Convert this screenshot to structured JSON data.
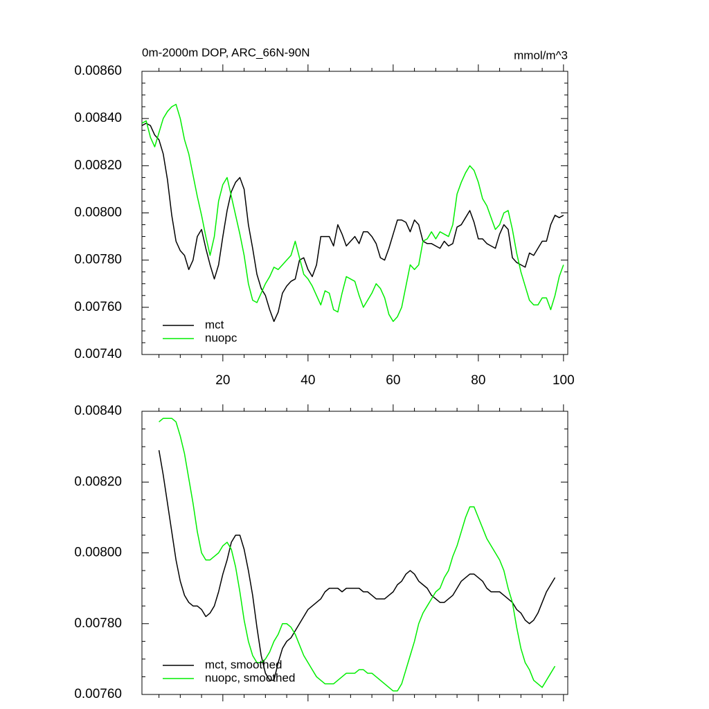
{
  "chart_data": [
    {
      "type": "line",
      "title": "0m-2000m DOP, ARC_66N-90N",
      "units": "mmol/m^3",
      "x": [
        1,
        2,
        3,
        4,
        5,
        6,
        7,
        8,
        9,
        10,
        11,
        12,
        13,
        14,
        15,
        16,
        17,
        18,
        19,
        20,
        21,
        22,
        23,
        24,
        25,
        26,
        27,
        28,
        29,
        30,
        31,
        32,
        33,
        34,
        35,
        36,
        37,
        38,
        39,
        40,
        41,
        42,
        43,
        44,
        45,
        46,
        47,
        48,
        49,
        50,
        51,
        52,
        53,
        54,
        55,
        56,
        57,
        58,
        59,
        60,
        61,
        62,
        63,
        64,
        65,
        66,
        67,
        68,
        69,
        70,
        71,
        72,
        73,
        74,
        75,
        76,
        77,
        78,
        79,
        80,
        81,
        82,
        83,
        84,
        85,
        86,
        87,
        88,
        89,
        90,
        91,
        92,
        93,
        94,
        95,
        96,
        97,
        98,
        99,
        100
      ],
      "series": [
        {
          "name": "mct",
          "color": "#000000",
          "values": [
            0.00837,
            0.00838,
            0.00837,
            0.00833,
            0.00831,
            0.00825,
            0.00814,
            0.00799,
            0.00788,
            0.00784,
            0.00782,
            0.00776,
            0.0078,
            0.0079,
            0.00793,
            0.00785,
            0.00778,
            0.00772,
            0.00778,
            0.0079,
            0.00801,
            0.00809,
            0.00813,
            0.00815,
            0.0081,
            0.00795,
            0.00785,
            0.00774,
            0.00768,
            0.00765,
            0.00759,
            0.00754,
            0.00758,
            0.00766,
            0.00769,
            0.00771,
            0.00772,
            0.0078,
            0.00781,
            0.00776,
            0.00773,
            0.00778,
            0.0079,
            0.0079,
            0.0079,
            0.00786,
            0.00795,
            0.00791,
            0.00786,
            0.00788,
            0.0079,
            0.00787,
            0.00792,
            0.00792,
            0.0079,
            0.00787,
            0.00781,
            0.0078,
            0.00785,
            0.00791,
            0.00797,
            0.00797,
            0.00796,
            0.00792,
            0.00797,
            0.00795,
            0.00788,
            0.00787,
            0.00787,
            0.00786,
            0.00785,
            0.00788,
            0.00786,
            0.00787,
            0.00794,
            0.00795,
            0.00798,
            0.00801,
            0.00796,
            0.00789,
            0.00789,
            0.00787,
            0.00786,
            0.00785,
            0.00791,
            0.00795,
            0.00793,
            0.00781,
            0.00779,
            0.00778,
            0.00777,
            0.00783,
            0.00782,
            0.00785,
            0.00788,
            0.00788,
            0.00795,
            0.00799,
            0.00798,
            0.00799
          ]
        },
        {
          "name": "nuopc",
          "color": "#00ee00",
          "values": [
            0.00838,
            0.00839,
            0.00832,
            0.00828,
            0.00834,
            0.0084,
            0.00843,
            0.00845,
            0.00846,
            0.0084,
            0.00831,
            0.00825,
            0.00816,
            0.00807,
            0.00799,
            0.0079,
            0.00782,
            0.0079,
            0.00805,
            0.00812,
            0.00815,
            0.00807,
            0.00799,
            0.00791,
            0.00782,
            0.0077,
            0.00763,
            0.00762,
            0.00766,
            0.0077,
            0.00773,
            0.00777,
            0.00776,
            0.00778,
            0.0078,
            0.00782,
            0.00788,
            0.00781,
            0.00774,
            0.00772,
            0.00769,
            0.00765,
            0.00761,
            0.00767,
            0.00766,
            0.00759,
            0.00758,
            0.00766,
            0.00773,
            0.00772,
            0.00771,
            0.00765,
            0.0076,
            0.00763,
            0.00766,
            0.0077,
            0.00768,
            0.00764,
            0.00757,
            0.00754,
            0.00756,
            0.0076,
            0.00769,
            0.00778,
            0.00776,
            0.00778,
            0.00788,
            0.00789,
            0.00792,
            0.00789,
            0.00792,
            0.00791,
            0.0079,
            0.00795,
            0.00808,
            0.00813,
            0.00817,
            0.0082,
            0.00818,
            0.00813,
            0.00806,
            0.00803,
            0.00798,
            0.00793,
            0.00795,
            0.008,
            0.00801,
            0.00793,
            0.00783,
            0.00775,
            0.00769,
            0.00763,
            0.00761,
            0.00761,
            0.00764,
            0.00764,
            0.00759,
            0.00765,
            0.00773,
            0.00778
          ]
        }
      ],
      "xlim": [
        1,
        101
      ],
      "xticks": [
        20,
        40,
        60,
        80,
        100
      ],
      "x_tick_labels": true,
      "ylim": [
        0.0074,
        0.0086
      ],
      "yticks": [
        {
          "value": 0.0074,
          "label": "0.00740"
        },
        {
          "value": 0.0076,
          "label": "0.00760"
        },
        {
          "value": 0.0078,
          "label": "0.00780"
        },
        {
          "value": 0.008,
          "label": "0.00800"
        },
        {
          "value": 0.0082,
          "label": "0.00820"
        },
        {
          "value": 0.0084,
          "label": "0.00840"
        },
        {
          "value": 0.0086,
          "label": "0.00860"
        }
      ],
      "grid": false,
      "legend": "lower left"
    },
    {
      "type": "line",
      "x": [
        5,
        6,
        7,
        8,
        9,
        10,
        11,
        12,
        13,
        14,
        15,
        16,
        17,
        18,
        19,
        20,
        21,
        22,
        23,
        24,
        25,
        26,
        27,
        28,
        29,
        30,
        31,
        32,
        33,
        34,
        35,
        36,
        37,
        38,
        39,
        40,
        41,
        42,
        43,
        44,
        45,
        46,
        47,
        48,
        49,
        50,
        51,
        52,
        53,
        54,
        55,
        56,
        57,
        58,
        59,
        60,
        61,
        62,
        63,
        64,
        65,
        66,
        67,
        68,
        69,
        70,
        71,
        72,
        73,
        74,
        75,
        76,
        77,
        78,
        79,
        80,
        81,
        82,
        83,
        84,
        85,
        86,
        87,
        88,
        89,
        90,
        91,
        92,
        93,
        94,
        95,
        96,
        97,
        98
      ],
      "series": [
        {
          "name": "mct, smoothed",
          "color": "#000000",
          "values": [
            0.00829,
            0.00822,
            0.00814,
            0.00806,
            0.00798,
            0.00792,
            0.00788,
            0.00786,
            0.00785,
            0.00785,
            0.00784,
            0.00782,
            0.00783,
            0.00785,
            0.00789,
            0.00794,
            0.00798,
            0.00803,
            0.00805,
            0.00805,
            0.00801,
            0.00795,
            0.00788,
            0.00779,
            0.00771,
            0.00766,
            0.00764,
            0.00764,
            0.00769,
            0.00773,
            0.00775,
            0.00776,
            0.00778,
            0.0078,
            0.00782,
            0.00784,
            0.00785,
            0.00786,
            0.00787,
            0.00789,
            0.0079,
            0.0079,
            0.0079,
            0.00789,
            0.0079,
            0.0079,
            0.0079,
            0.0079,
            0.00789,
            0.00789,
            0.00788,
            0.00787,
            0.00787,
            0.00787,
            0.00788,
            0.00789,
            0.00791,
            0.00792,
            0.00794,
            0.00795,
            0.00794,
            0.00792,
            0.00791,
            0.0079,
            0.00788,
            0.00787,
            0.00786,
            0.00786,
            0.00787,
            0.00788,
            0.0079,
            0.00792,
            0.00793,
            0.00794,
            0.00794,
            0.00793,
            0.00792,
            0.0079,
            0.00789,
            0.00789,
            0.00789,
            0.00788,
            0.00787,
            0.00786,
            0.00784,
            0.00783,
            0.00781,
            0.0078,
            0.00781,
            0.00783,
            0.00786,
            0.00789,
            0.00791,
            0.00793
          ]
        },
        {
          "name": "nuopc, smoothed",
          "color": "#00ee00",
          "values": [
            0.00837,
            0.00838,
            0.00838,
            0.00838,
            0.00837,
            0.00833,
            0.00828,
            0.00821,
            0.00814,
            0.00806,
            0.008,
            0.00798,
            0.00798,
            0.00799,
            0.008,
            0.00802,
            0.00803,
            0.00801,
            0.00796,
            0.00789,
            0.00781,
            0.00775,
            0.00771,
            0.00769,
            0.00769,
            0.0077,
            0.00772,
            0.00775,
            0.00777,
            0.0078,
            0.0078,
            0.00779,
            0.00777,
            0.00774,
            0.00771,
            0.00769,
            0.00767,
            0.00765,
            0.00764,
            0.00763,
            0.00763,
            0.00763,
            0.00764,
            0.00765,
            0.00766,
            0.00766,
            0.00766,
            0.00767,
            0.00767,
            0.00766,
            0.00766,
            0.00765,
            0.00764,
            0.00763,
            0.00762,
            0.00761,
            0.00761,
            0.00763,
            0.00767,
            0.00771,
            0.00775,
            0.0078,
            0.00783,
            0.00785,
            0.00787,
            0.00789,
            0.0079,
            0.00793,
            0.00795,
            0.00799,
            0.00802,
            0.00806,
            0.0081,
            0.00813,
            0.00813,
            0.0081,
            0.00807,
            0.00804,
            0.00802,
            0.008,
            0.00798,
            0.00795,
            0.0079,
            0.00786,
            0.00779,
            0.00773,
            0.00769,
            0.00767,
            0.00764,
            0.00763,
            0.00762,
            0.00764,
            0.00766,
            0.00768
          ]
        }
      ],
      "xlim": [
        1,
        101
      ],
      "xticks": [
        20,
        40,
        60,
        80,
        100
      ],
      "x_tick_labels": false,
      "ylim": [
        0.0076,
        0.0084
      ],
      "yticks": [
        {
          "value": 0.0076,
          "label": "0.00760"
        },
        {
          "value": 0.0078,
          "label": "0.00780"
        },
        {
          "value": 0.008,
          "label": "0.00800"
        },
        {
          "value": 0.0082,
          "label": "0.00820"
        },
        {
          "value": 0.0084,
          "label": "0.00840"
        }
      ],
      "grid": false,
      "legend": "lower left"
    }
  ]
}
